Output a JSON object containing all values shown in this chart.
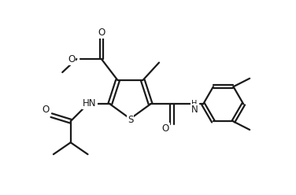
{
  "bg_color": "#ffffff",
  "line_color": "#1a1a1a",
  "line_width": 1.6,
  "figsize": [
    3.76,
    2.48
  ],
  "dpi": 100,
  "xlim": [
    0,
    10
  ],
  "ylim": [
    0,
    6.6
  ],
  "text_S": "S",
  "text_HN_left": "HN",
  "text_H_right": "H",
  "text_N_right": "N",
  "text_O_carbonyl_left": "O",
  "text_O_carbonyl_right": "O",
  "text_O_ester": "O",
  "text_O_top": "O",
  "font_size_atom": 8.5
}
